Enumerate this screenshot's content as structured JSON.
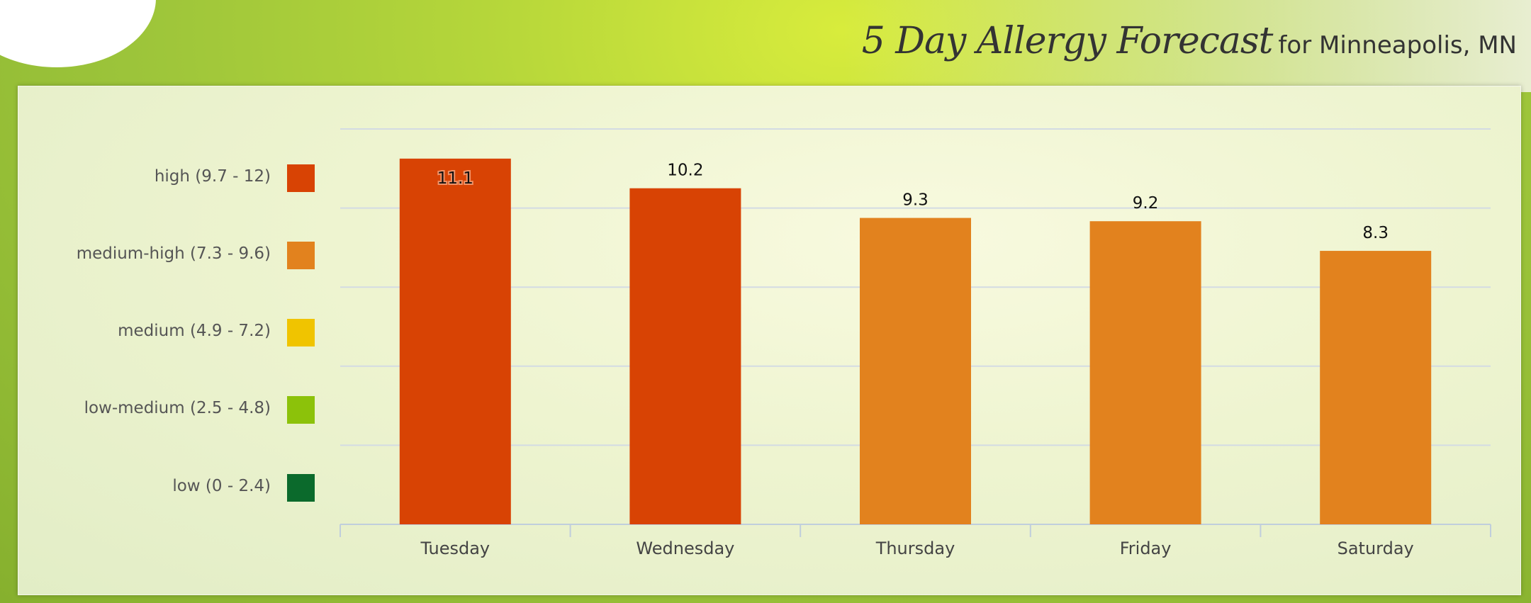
{
  "header": {
    "title": "5 Day Allergy Forecast",
    "location": "for Minneapolis, MN"
  },
  "legend": [
    {
      "label": "high (9.7 - 12)",
      "color": "#d84304"
    },
    {
      "label": "medium-high (7.3 - 9.6)",
      "color": "#e2821e"
    },
    {
      "label": "medium (4.9 - 7.2)",
      "color": "#f0c400"
    },
    {
      "label": "low-medium (2.5 - 4.8)",
      "color": "#8cc20a"
    },
    {
      "label": "low (0 - 2.4)",
      "color": "#0b6a2c"
    }
  ],
  "chart_data": {
    "type": "bar",
    "title": "5 Day Allergy Forecast",
    "categories": [
      "Tuesday",
      "Wednesday",
      "Thursday",
      "Friday",
      "Saturday"
    ],
    "values": [
      11.1,
      10.2,
      9.3,
      9.2,
      8.3
    ],
    "value_labels": [
      "11.1",
      "10.2",
      "9.3",
      "9.2",
      "8.3"
    ],
    "colors": [
      "#d84304",
      "#d84304",
      "#e2821e",
      "#e2821e",
      "#e2821e"
    ],
    "ylim": [
      0,
      12
    ],
    "gridlines": [
      2.4,
      4.8,
      7.2,
      9.6,
      12
    ],
    "grid": true,
    "xlabel": "",
    "ylabel": "",
    "legend_placement": "left"
  }
}
